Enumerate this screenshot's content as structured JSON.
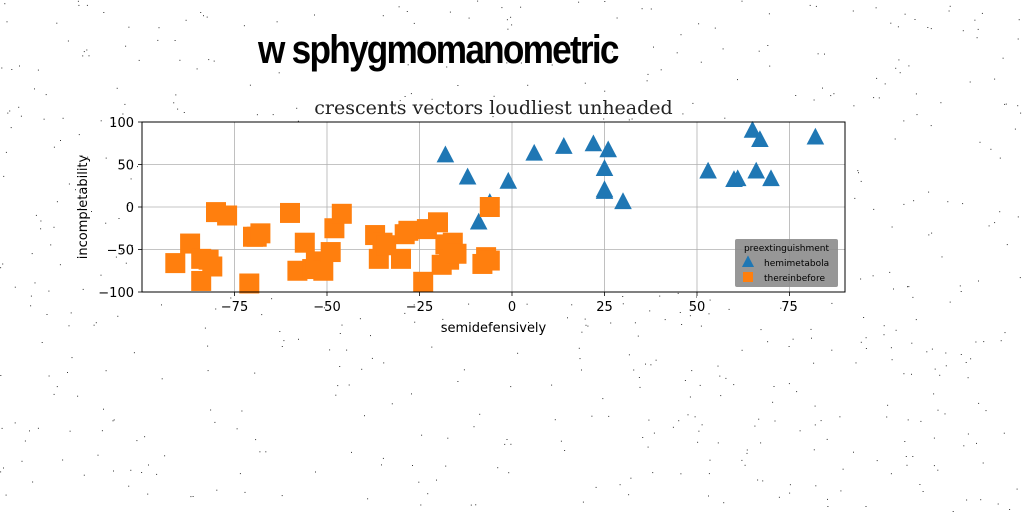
{
  "figure": {
    "title": "w sphygmomanometric"
  },
  "chart_data": {
    "type": "scatter",
    "title": "crescents vectors loudliest unheaded",
    "xlabel": "semidefensively",
    "ylabel": "incompletability",
    "xlim": [
      -100,
      90
    ],
    "ylim": [
      -100,
      100
    ],
    "xticks": [
      -75,
      -50,
      -25,
      0,
      25,
      50,
      75
    ],
    "yticks": [
      -100,
      -50,
      0,
      50,
      100
    ],
    "xtick_labels": [
      "−75",
      "−50",
      "−25",
      "0",
      "25",
      "50",
      "75"
    ],
    "ytick_labels": [
      "−100",
      "−50",
      "0",
      "50",
      "100"
    ],
    "grid": true,
    "legend": {
      "title": "preextinguishment",
      "position": "lower-right"
    },
    "series": [
      {
        "name": "hemimetabola",
        "marker": "triangle",
        "color": "#1f77b4",
        "x": [
          -18,
          -12,
          -9,
          -6,
          -1,
          6,
          14,
          22,
          25,
          25,
          25,
          26,
          30,
          53,
          60,
          61,
          65,
          66,
          67,
          70,
          82
        ],
        "y": [
          61,
          35,
          -18,
          5,
          30,
          63,
          71,
          74,
          45,
          18,
          20,
          67,
          6,
          42,
          32,
          33,
          90,
          42,
          79,
          33,
          82
        ]
      },
      {
        "name": "thereinbefore",
        "marker": "square",
        "color": "#ff7f0e",
        "x": [
          -91,
          -87,
          -84,
          -84,
          -82,
          -81,
          -80,
          -77,
          -71,
          -70,
          -69,
          -68,
          -60,
          -58,
          -56,
          -54,
          -53,
          -51,
          -49,
          -48,
          -46,
          -37,
          -36,
          -35,
          -34,
          -30,
          -29,
          -28,
          -24,
          -23,
          -20,
          -19,
          -18,
          -17,
          -16,
          -15,
          -8,
          -7,
          -6,
          -6
        ],
        "y": [
          -66,
          -43,
          -61,
          -87,
          -62,
          -70,
          -6,
          -10,
          -90,
          -35,
          -35,
          -31,
          -7,
          -75,
          -42,
          -73,
          -64,
          -75,
          -53,
          -25,
          -8,
          -33,
          -61,
          -42,
          -45,
          -61,
          -32,
          -28,
          -88,
          -26,
          -18,
          -68,
          -44,
          -62,
          -42,
          -55,
          -67,
          -59,
          -63,
          0
        ]
      }
    ]
  }
}
